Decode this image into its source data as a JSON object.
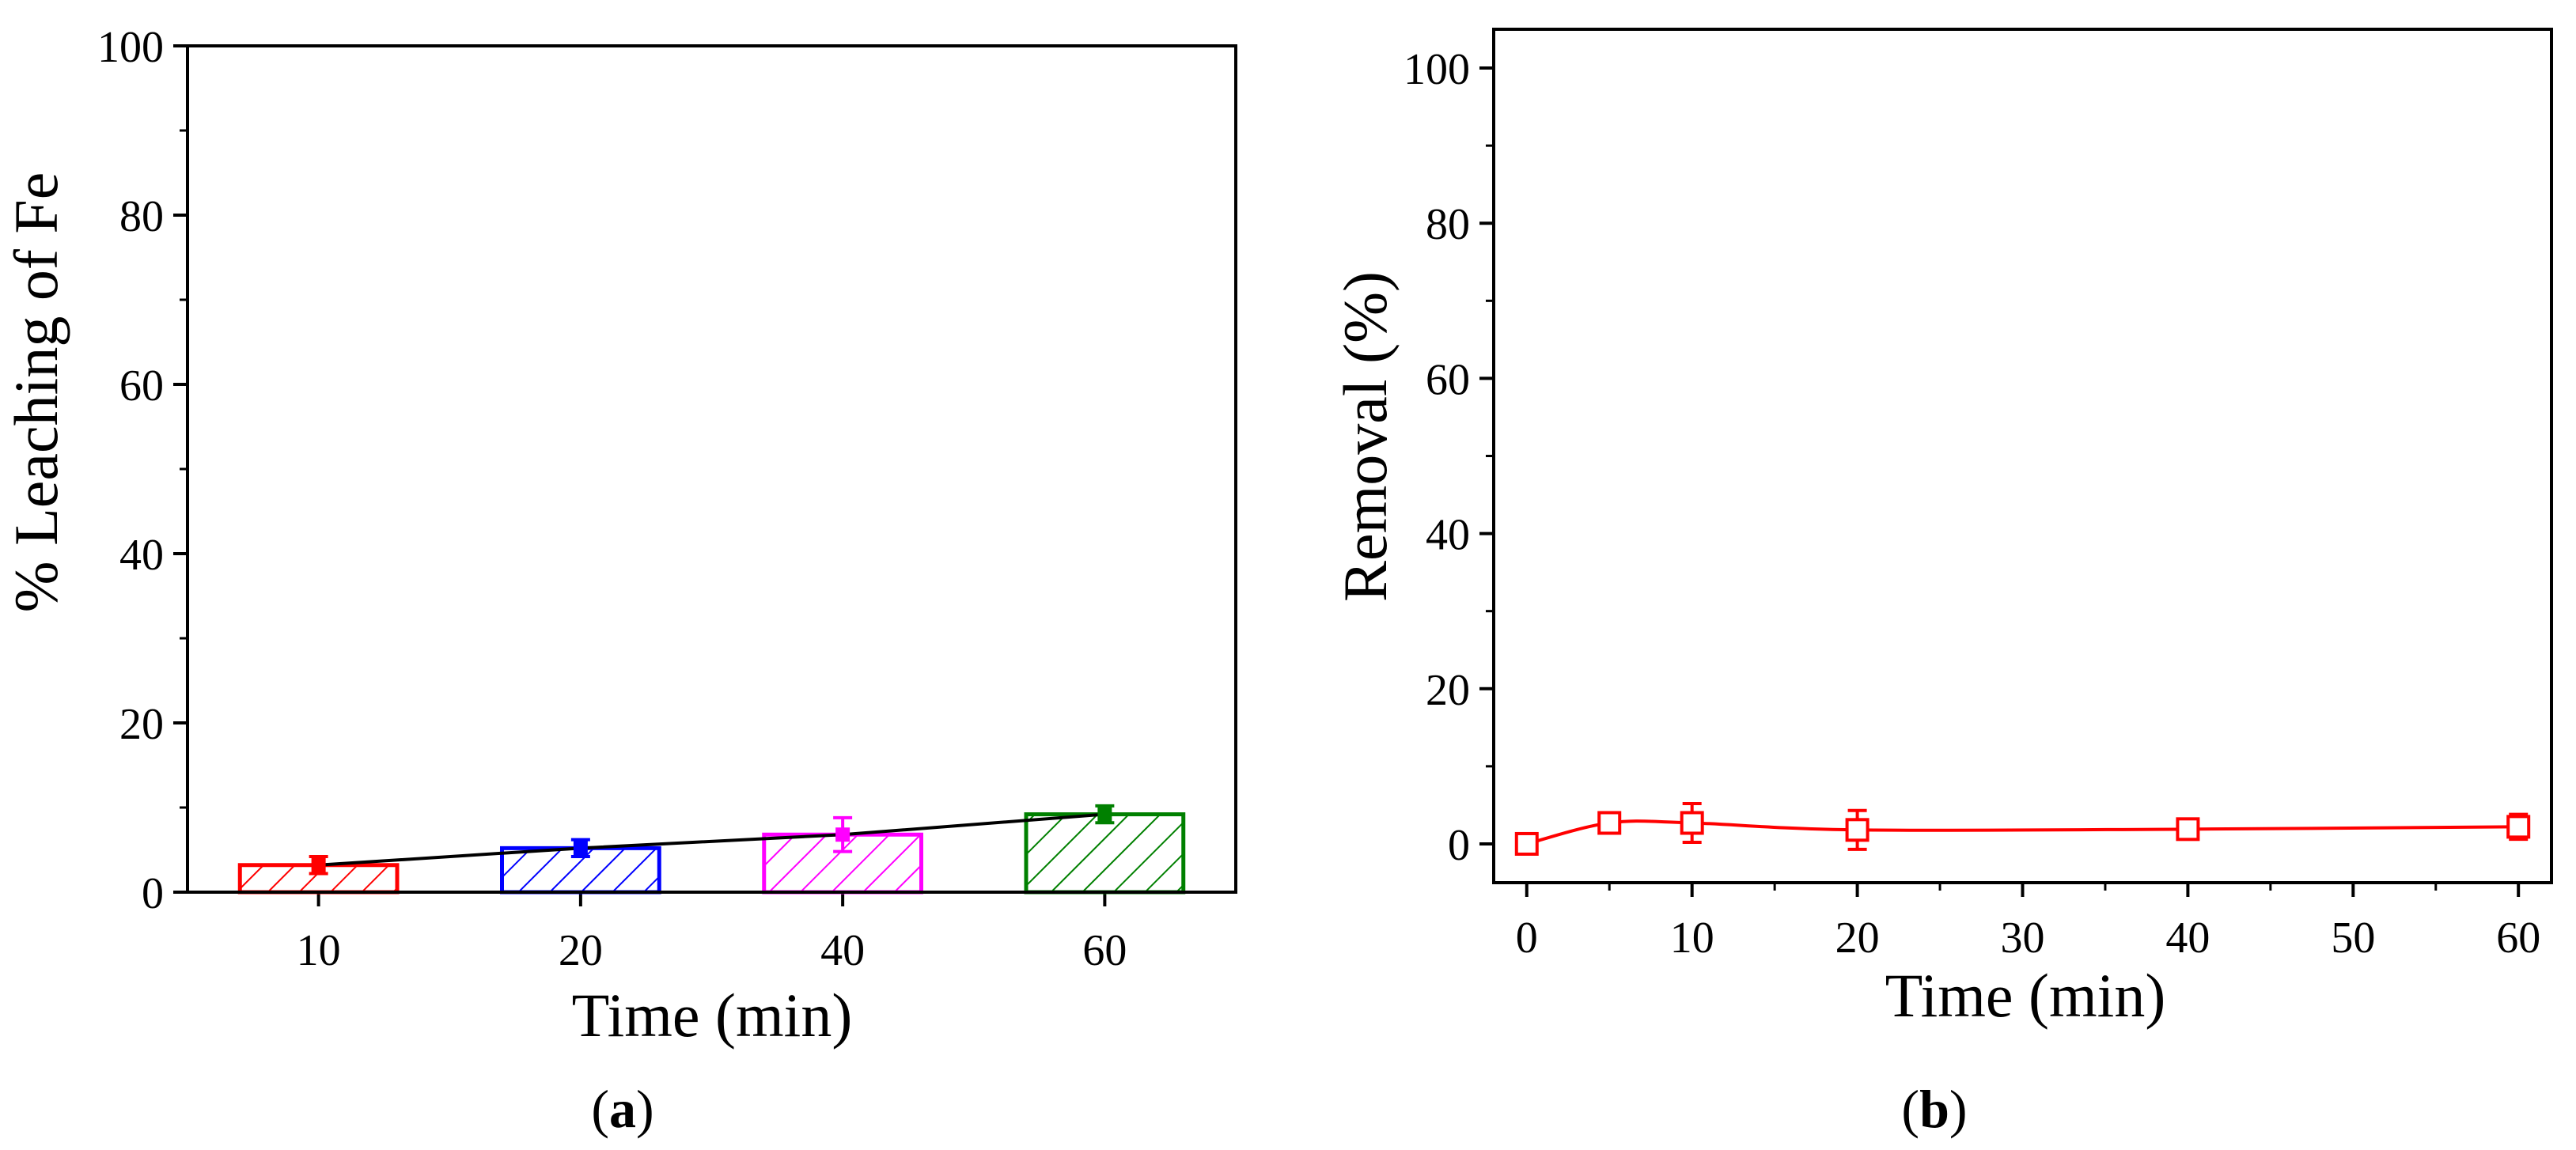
{
  "chart_data": [
    {
      "type": "bar",
      "panel_label": "a",
      "categories": [
        "10",
        "20",
        "40",
        "60"
      ],
      "values": [
        3.2,
        5.2,
        6.8,
        9.2
      ],
      "errors": [
        1.0,
        1.0,
        2.0,
        1.0
      ],
      "colors": [
        "#ff0000",
        "#0000ff",
        "#ff00ff",
        "#008000"
      ],
      "hatch": "diagonal",
      "trend_line": true,
      "trend_color": "#000000",
      "xlabel": "Time (min)",
      "ylabel": "% Leaching of Fe",
      "ylim": [
        0,
        100
      ],
      "yticks": [
        0,
        20,
        40,
        60,
        80,
        100
      ]
    },
    {
      "type": "line",
      "panel_label": "b",
      "x": [
        0,
        5,
        10,
        20,
        40,
        60
      ],
      "y": [
        0.0,
        2.7,
        2.7,
        1.8,
        1.9,
        2.2
      ],
      "yerr": [
        0.0,
        1.2,
        2.5,
        2.5,
        1.2,
        1.6
      ],
      "color": "#ff0000",
      "marker": "open-square",
      "xlabel": "Time (min)",
      "ylabel": "Removal (%)",
      "xlim": [
        -2,
        62
      ],
      "ylim": [
        -5,
        105
      ],
      "xticks": [
        0,
        10,
        20,
        30,
        40,
        50,
        60
      ],
      "yticks": [
        0,
        20,
        40,
        60,
        80,
        100
      ]
    }
  ]
}
